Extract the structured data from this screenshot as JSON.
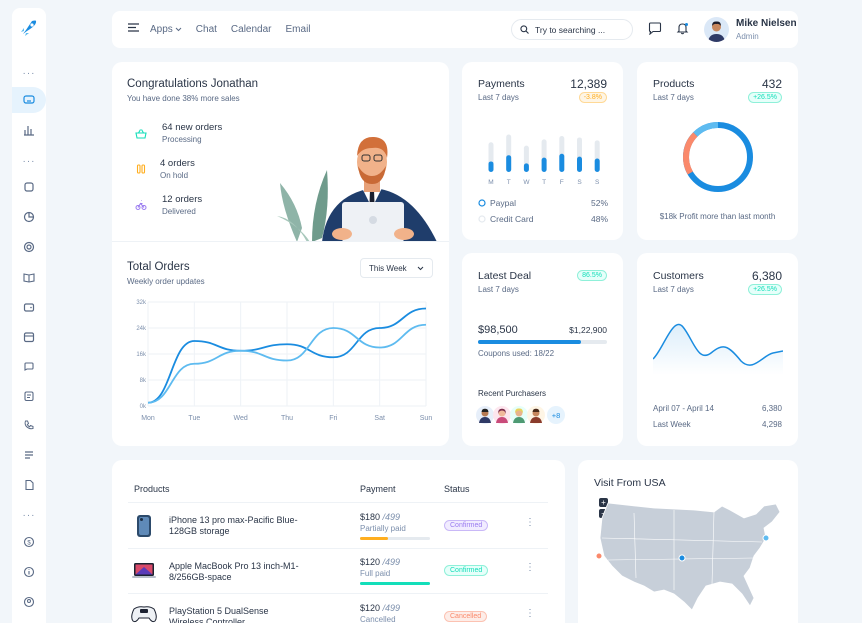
{
  "header": {
    "nav": [
      "Apps",
      "Chat",
      "Calendar",
      "Email"
    ],
    "search_placeholder": "Try to searching ...",
    "user_name": "Mike Nielsen",
    "user_role": "Admin"
  },
  "congrats": {
    "title": "Congratulations Jonathan",
    "subtitle": "You have done 38% more sales",
    "orders": [
      {
        "title": "64 new orders",
        "status": "Processing",
        "icon": "basket-icon",
        "color": "#13deb9",
        "bg": "#e6fffa"
      },
      {
        "title": "4 orders",
        "status": "On hold",
        "icon": "pause-icon",
        "color": "#ffae1f",
        "bg": "#fef5e5"
      },
      {
        "title": "12 orders",
        "status": "Delivered",
        "icon": "bike-icon",
        "color": "#9a7bf0",
        "bg": "#f1ecff"
      }
    ]
  },
  "payments": {
    "title": "Payments",
    "value": "12,389",
    "period": "Last 7 days",
    "change": "-3.8%",
    "days": [
      "M",
      "T",
      "W",
      "T",
      "F",
      "S",
      "S"
    ],
    "bar_total": [
      0.62,
      0.78,
      0.55,
      0.68,
      0.75,
      0.72,
      0.66
    ],
    "bar_paid": [
      0.22,
      0.35,
      0.18,
      0.3,
      0.38,
      0.32,
      0.28
    ],
    "legend": [
      {
        "label": "Paypal",
        "value": "52%"
      },
      {
        "label": "Credit Card",
        "value": "48%"
      }
    ]
  },
  "products": {
    "title": "Products",
    "value": "432",
    "period": "Last 7 days",
    "change": "+26.5%",
    "caption": "$18k Profit more than last month"
  },
  "total_orders": {
    "title": "Total Orders",
    "subtitle": "Weekly order updates",
    "filter": "This Week"
  },
  "chart_data": {
    "type": "line",
    "x": [
      "Mon",
      "Tue",
      "Wed",
      "Thu",
      "Fri",
      "Sat",
      "Sun"
    ],
    "y_ticks": [
      "0k",
      "8k",
      "16k",
      "24k",
      "32k"
    ],
    "ylim": [
      0,
      32
    ],
    "series": [
      {
        "values": [
          1,
          20,
          17,
          19,
          15,
          24,
          30
        ],
        "color": "#1a8ce0"
      },
      {
        "values": [
          1,
          13,
          17,
          14,
          24,
          18,
          25
        ],
        "color": "#5ebbf0"
      }
    ],
    "grid": true
  },
  "latest_deal": {
    "title": "Latest Deal",
    "period": "Last 7 days",
    "change": "86.5%",
    "amount": "$98,500",
    "target": "$1,22,900",
    "coupons": "Coupons used: 18/22",
    "progress": 0.8,
    "recent_label": "Recent Purchasers",
    "more": "+8"
  },
  "customers": {
    "title": "Customers",
    "value": "6,380",
    "period": "Last 7 days",
    "change": "+26.5%",
    "range_label": "April 07 - April 14",
    "range_value": "6,380",
    "last_week_label": "Last Week",
    "last_week_value": "4,298"
  },
  "products_table": {
    "headers": [
      "Products",
      "Payment",
      "Status"
    ],
    "rows": [
      {
        "name": "iPhone 13 pro max-Pacific Blue-128GB storage",
        "price": "$180",
        "was": "/499",
        "pay_status": "Partially paid",
        "progress": 0.4,
        "bar_color": "#ffae1f",
        "status": "Confirmed",
        "status_color": "#9a7bf0"
      },
      {
        "name": "Apple MacBook Pro 13 inch-M1-8/256GB-space",
        "price": "$120",
        "was": "/499",
        "pay_status": "Full paid",
        "progress": 1.0,
        "bar_color": "#13deb9",
        "status": "Confirmed",
        "status_color": "#13deb9"
      },
      {
        "name": "PlayStation 5 DualSense Wireless Controller",
        "price": "$120",
        "was": "/499",
        "pay_status": "Cancelled",
        "progress": 0.0,
        "bar_color": "#fa896b",
        "status": "Cancelled",
        "status_color": "#fa896b"
      }
    ]
  },
  "visit": {
    "title": "Visit From USA",
    "zoom_in": "+",
    "zoom_out": "−"
  }
}
